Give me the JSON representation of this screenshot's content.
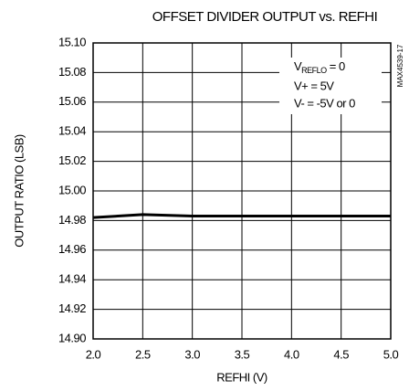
{
  "chart_data": {
    "type": "line",
    "title": "OFFSET DIVIDER OUTPUT vs. REFHI",
    "x_label": "REFHI (V)",
    "y_label": "OUTPUT RATIO (LSB)",
    "side_label": "MAX4539-17",
    "annotation": {
      "reflo": {
        "symbol": "V",
        "subscript": "REFLO",
        "rest": " = 0"
      },
      "lines": [
        "V+ = 5V",
        "V- = -5V or 0"
      ]
    },
    "x": [
      2.0,
      2.5,
      3.0,
      3.5,
      4.0,
      4.5,
      5.0
    ],
    "series": [
      {
        "color": "#000000",
        "values": [
          14.982,
          14.984,
          14.983,
          14.983,
          14.983,
          14.983,
          14.983
        ]
      }
    ],
    "xlim": [
      2.0,
      5.0
    ],
    "xticks": [
      {
        "value": 2,
        "label": "2.0"
      },
      2.5,
      {
        "value": 3,
        "label": "3.0"
      },
      3.5,
      {
        "value": 4,
        "label": "4.0"
      },
      4.5,
      {
        "value": 5,
        "label": "5.0"
      }
    ],
    "ylim": [
      14.9,
      15.1
    ],
    "yticks": [
      {
        "value": 15.1,
        "label": "15.10"
      },
      15.08,
      15.06,
      15.04,
      15.02,
      {
        "value": 15,
        "label": "15.00"
      },
      14.98,
      14.96,
      14.94,
      14.92,
      {
        "value": 14.9,
        "label": "14.90"
      }
    ],
    "grid": true
  }
}
